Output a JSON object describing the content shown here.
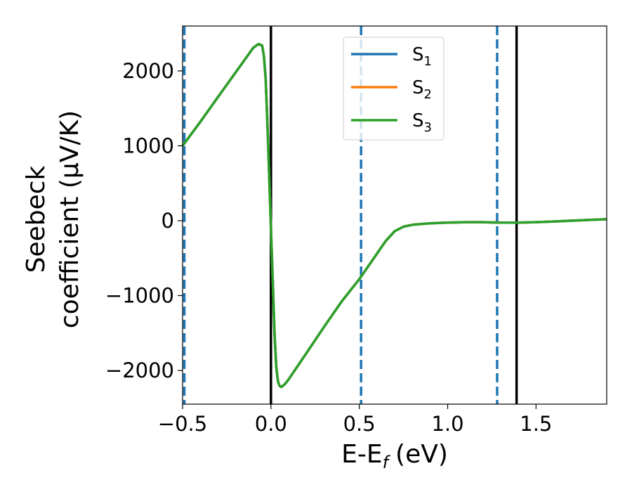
{
  "chart_data": {
    "type": "line",
    "xlabel": "E-E",
    "xlabel_sub": "f",
    "xlabel_unit": "(eV)",
    "ylabel_line1": "Seebeck",
    "ylabel_line2": "coefficient  (μV/K)",
    "xlim": [
      -0.5,
      1.9
    ],
    "ylim": [
      -2450,
      2600
    ],
    "xticks": [
      -0.5,
      0.0,
      0.5,
      1.0,
      1.5
    ],
    "xtick_labels": [
      "−0.5",
      "0.0",
      "0.5",
      "1.0",
      "1.5"
    ],
    "yticks": [
      -2000,
      -1000,
      0,
      1000,
      2000
    ],
    "ytick_labels": [
      "−2000",
      "−1000",
      "0",
      "1000",
      "2000"
    ],
    "grid": false,
    "legend": {
      "location": "upper center",
      "entries": [
        {
          "label": "S",
          "sub": "1",
          "color": "#1f77b4"
        },
        {
          "label": "S",
          "sub": "2",
          "color": "#ff7f0e"
        },
        {
          "label": "S",
          "sub": "3",
          "color": "#2ca02c"
        }
      ]
    },
    "vertical_lines": [
      {
        "x": -0.49,
        "style": "dashed",
        "color": "#1f77b4"
      },
      {
        "x": 0.0,
        "style": "solid",
        "color": "#000000"
      },
      {
        "x": 0.51,
        "style": "dashed",
        "color": "#1f77b4"
      },
      {
        "x": 1.28,
        "style": "dashed",
        "color": "#1f77b4"
      },
      {
        "x": 1.39,
        "style": "solid",
        "color": "#000000"
      }
    ],
    "series": [
      {
        "name": "S1",
        "color": "#1f77b4",
        "x": [
          -0.5,
          -0.4,
          -0.3,
          -0.2,
          -0.1,
          -0.07,
          -0.05,
          -0.04,
          -0.03,
          -0.02,
          -0.01,
          0.0,
          0.01,
          0.02,
          0.03,
          0.04,
          0.05,
          0.06,
          0.08,
          0.1,
          0.2,
          0.3,
          0.4,
          0.5,
          0.55,
          0.6,
          0.65,
          0.7,
          0.75,
          0.8,
          0.9,
          1.0,
          1.1,
          1.2,
          1.3,
          1.4,
          1.5,
          1.6,
          1.7,
          1.8,
          1.9
        ],
        "y": [
          1000,
          1320,
          1650,
          1980,
          2310,
          2360,
          2340,
          2200,
          1900,
          1300,
          600,
          -100,
          -800,
          -1500,
          -1950,
          -2150,
          -2210,
          -2220,
          -2180,
          -2120,
          -1770,
          -1420,
          -1080,
          -780,
          -610,
          -440,
          -270,
          -140,
          -80,
          -55,
          -35,
          -25,
          -20,
          -20,
          -25,
          -25,
          -20,
          -10,
          0,
          10,
          20
        ]
      },
      {
        "name": "S2",
        "color": "#ff7f0e",
        "x": [
          -0.5,
          -0.4,
          -0.3,
          -0.2,
          -0.1,
          -0.07,
          -0.05,
          -0.04,
          -0.03,
          -0.02,
          -0.01,
          0.0,
          0.01,
          0.02,
          0.03,
          0.04,
          0.05,
          0.06,
          0.08,
          0.1,
          0.2,
          0.3,
          0.4,
          0.5,
          0.55,
          0.6,
          0.65,
          0.7,
          0.75,
          0.8,
          0.9,
          1.0,
          1.1,
          1.2,
          1.3,
          1.4,
          1.5,
          1.6,
          1.7,
          1.8,
          1.9
        ],
        "y": [
          1000,
          1320,
          1650,
          1980,
          2310,
          2360,
          2340,
          2200,
          1900,
          1300,
          600,
          -100,
          -800,
          -1500,
          -1950,
          -2150,
          -2210,
          -2220,
          -2180,
          -2120,
          -1770,
          -1420,
          -1080,
          -780,
          -610,
          -440,
          -270,
          -140,
          -80,
          -55,
          -35,
          -25,
          -20,
          -20,
          -25,
          -25,
          -20,
          -10,
          0,
          10,
          20
        ]
      },
      {
        "name": "S3",
        "color": "#2ca02c",
        "x": [
          -0.5,
          -0.4,
          -0.3,
          -0.2,
          -0.1,
          -0.07,
          -0.05,
          -0.04,
          -0.03,
          -0.02,
          -0.01,
          0.0,
          0.01,
          0.02,
          0.03,
          0.04,
          0.05,
          0.06,
          0.08,
          0.1,
          0.2,
          0.3,
          0.4,
          0.5,
          0.55,
          0.6,
          0.65,
          0.7,
          0.75,
          0.8,
          0.9,
          1.0,
          1.1,
          1.2,
          1.3,
          1.4,
          1.5,
          1.6,
          1.7,
          1.8,
          1.9
        ],
        "y": [
          1000,
          1320,
          1650,
          1980,
          2310,
          2360,
          2340,
          2200,
          1900,
          1300,
          600,
          -100,
          -800,
          -1500,
          -1950,
          -2150,
          -2210,
          -2220,
          -2180,
          -2120,
          -1770,
          -1420,
          -1080,
          -780,
          -610,
          -440,
          -270,
          -140,
          -80,
          -55,
          -35,
          -25,
          -20,
          -20,
          -25,
          -25,
          -20,
          -10,
          0,
          10,
          20
        ]
      }
    ]
  }
}
